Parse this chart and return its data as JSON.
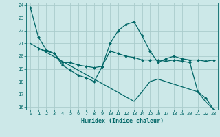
{
  "title": "",
  "xlabel": "Humidex (Indice chaleur)",
  "background_color": "#cce8e8",
  "grid_color": "#aacccc",
  "line_color": "#006666",
  "xlim": [
    -0.5,
    23.5
  ],
  "ylim": [
    15.8,
    24.2
  ],
  "yticks": [
    16,
    17,
    18,
    19,
    20,
    21,
    22,
    23,
    24
  ],
  "xticks": [
    0,
    1,
    2,
    3,
    4,
    5,
    6,
    7,
    8,
    9,
    10,
    11,
    12,
    13,
    14,
    15,
    16,
    17,
    18,
    19,
    20,
    21,
    22,
    23
  ],
  "line1_x": [
    0,
    1,
    2,
    3,
    4,
    5,
    6,
    7,
    8,
    9,
    10,
    11,
    12,
    13,
    14,
    15,
    16,
    17,
    18,
    19,
    20,
    21,
    22,
    23
  ],
  "line1_y": [
    23.8,
    21.5,
    20.5,
    20.2,
    19.3,
    18.9,
    18.5,
    18.3,
    18.0,
    19.2,
    21.0,
    22.0,
    22.5,
    22.7,
    21.6,
    20.4,
    19.5,
    19.8,
    20.0,
    19.8,
    19.7,
    19.7,
    19.6,
    19.7
  ],
  "line2_x": [
    1,
    2,
    3,
    4,
    5,
    6,
    7,
    8,
    9,
    10,
    11,
    12,
    13,
    14,
    15,
    16,
    17,
    18,
    19,
    20,
    21,
    22,
    23
  ],
  "line2_y": [
    20.6,
    20.4,
    20.2,
    19.5,
    19.5,
    19.3,
    19.2,
    19.1,
    19.2,
    20.4,
    20.2,
    20.0,
    19.9,
    19.7,
    19.7,
    19.7,
    19.6,
    19.7,
    19.6,
    19.5,
    17.2,
    16.7,
    15.8
  ],
  "line3_x": [
    0,
    1,
    2,
    3,
    4,
    5,
    6,
    7,
    8,
    9,
    10,
    11,
    12,
    13,
    14,
    15,
    16,
    17,
    18,
    19,
    20,
    21,
    22,
    23
  ],
  "line3_y": [
    21.0,
    20.65,
    20.3,
    19.95,
    19.6,
    19.25,
    18.9,
    18.55,
    18.2,
    17.85,
    17.5,
    17.15,
    16.8,
    16.45,
    17.2,
    18.0,
    18.2,
    18.0,
    17.8,
    17.6,
    17.4,
    17.2,
    16.4,
    15.8
  ]
}
